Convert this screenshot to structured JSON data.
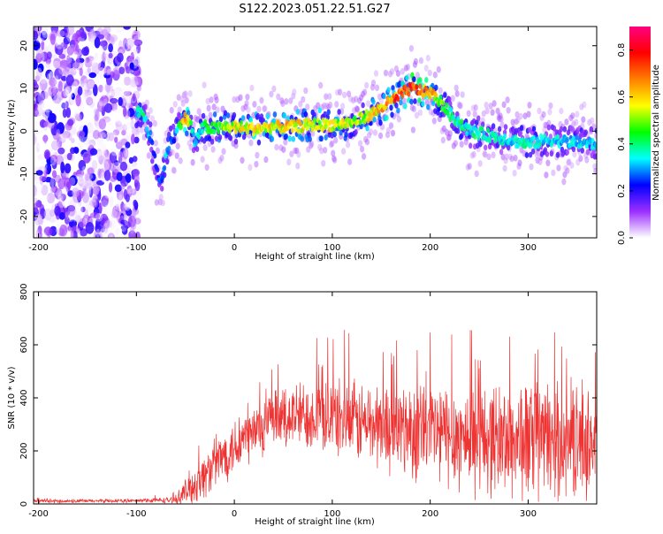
{
  "figure_title": "S122.2023.051.22.51.G27",
  "chart_data": [
    {
      "type": "heatmap",
      "xlabel": "Height of straight line (km)",
      "ylabel": "Frequency (Hz)",
      "xlim": [
        -205,
        370
      ],
      "ylim": [
        -25,
        24.5
      ],
      "x_ticks": [
        -200,
        -100,
        0,
        100,
        200,
        300
      ],
      "y_ticks": [
        -20,
        -10,
        0,
        10,
        20
      ],
      "colorbar": {
        "label": "Normalized spectral amplitude",
        "range": [
          0,
          0.9
        ],
        "ticks": [
          0.0,
          0.2,
          0.4,
          0.6,
          0.8
        ],
        "colors": [
          "#ffffff",
          "#9b30ff",
          "#0000ff",
          "#00ffff",
          "#00ff00",
          "#ffff00",
          "#ff8000",
          "#ff0000",
          "#ff0080"
        ]
      },
      "noise_region": {
        "x": [
          -205,
          -97
        ],
        "freq_range": [
          -25,
          24.5
        ]
      },
      "ridge": {
        "x": [
          -100,
          -95,
          -90,
          -85,
          -82,
          -78,
          -74,
          -70,
          -65,
          -60,
          -55,
          -50,
          -45,
          -40,
          -35,
          -30,
          -20,
          -10,
          0,
          20,
          40,
          60,
          80,
          100,
          120,
          140,
          160,
          180,
          200,
          210,
          220,
          240,
          260,
          280,
          300,
          320,
          340,
          370
        ],
        "freq": [
          4,
          5,
          2,
          -2,
          -6,
          -10,
          -12,
          -6,
          -2,
          -1,
          2,
          3,
          2,
          -3,
          0,
          1,
          0.5,
          1,
          1,
          0.5,
          1,
          1,
          1.5,
          1.5,
          2,
          4,
          7,
          10,
          9,
          7,
          4,
          0,
          -1,
          -2,
          -3,
          -2,
          -2.5,
          -3
        ],
        "amplitude": [
          0.35,
          0.45,
          0.4,
          0.3,
          0.25,
          0.25,
          0.3,
          0.35,
          0.3,
          0.3,
          0.5,
          0.7,
          0.6,
          0.3,
          0.4,
          0.45,
          0.5,
          0.55,
          0.6,
          0.65,
          0.6,
          0.65,
          0.6,
          0.6,
          0.55,
          0.6,
          0.75,
          0.85,
          0.7,
          0.55,
          0.45,
          0.4,
          0.4,
          0.35,
          0.4,
          0.35,
          0.35,
          0.35
        ]
      }
    },
    {
      "type": "line",
      "xlabel": "Height of straight line (km)",
      "ylabel": "SNR (10 * v/v)",
      "xlim": [
        -205,
        370
      ],
      "ylim": [
        0,
        800
      ],
      "x_ticks": [
        -200,
        -100,
        0,
        100,
        200,
        300
      ],
      "y_ticks": [
        0,
        200,
        400,
        600,
        800
      ],
      "color": "#ee3333",
      "envelope": {
        "x": [
          -205,
          -100,
          -60,
          -55,
          -45,
          -35,
          -20,
          0,
          20,
          40,
          60,
          80,
          100,
          120,
          140,
          160,
          180,
          200,
          220,
          240,
          260,
          280,
          300,
          320,
          340,
          370
        ],
        "base": [
          10,
          12,
          15,
          30,
          60,
          90,
          150,
          220,
          270,
          310,
          330,
          340,
          330,
          310,
          300,
          290,
          280,
          270,
          260,
          250,
          250,
          240,
          240,
          240,
          230,
          230
        ],
        "spread": [
          8,
          8,
          15,
          40,
          80,
          100,
          110,
          130,
          140,
          140,
          150,
          160,
          170,
          180,
          190,
          200,
          220,
          240,
          240,
          240,
          250,
          260,
          280,
          260,
          240,
          240
        ]
      }
    }
  ]
}
